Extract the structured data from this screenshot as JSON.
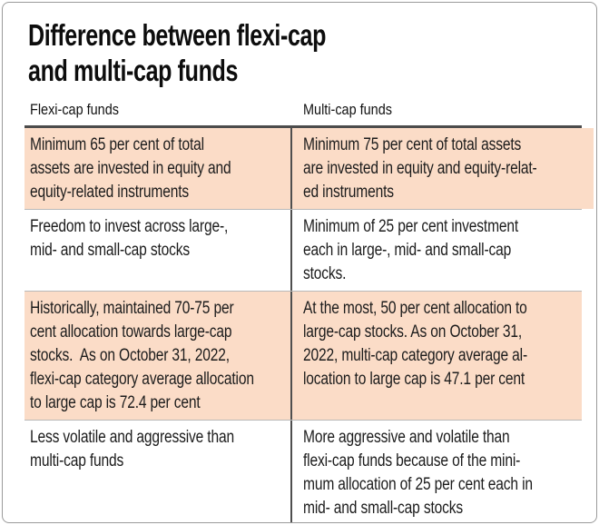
{
  "title": "Difference between flexi-cap\nand multi-cap funds",
  "colors": {
    "highlight": "#fbdcc7",
    "header_rule": "#4c4c4c",
    "row_rule": "#b8b8b8",
    "divider": "#4f4f4f",
    "frame": "#9a9a9a"
  },
  "table": {
    "columns": [
      {
        "label": "Flexi-cap funds"
      },
      {
        "label": "Multi-cap funds"
      }
    ],
    "rows": [
      {
        "highlight": true,
        "flexi": "Minimum 65 per cent of total\nassets are invested in equity and\nequity-related instruments",
        "multi": "Minimum 75 per cent of total assets\nare invested in equity and equity-relat-\ned instruments"
      },
      {
        "highlight": false,
        "flexi": "Freedom to invest across large-,\nmid- and small-cap stocks",
        "multi": "Minimum of 25 per cent investment\neach in large-, mid- and small-cap\nstocks."
      },
      {
        "highlight": true,
        "flexi": "Historically, maintained 70-75 per\ncent allocation towards large-cap\nstocks.  As on October 31, 2022,\nflexi-cap category average allocation\nto large cap is 72.4 per cent",
        "multi": "At the most, 50 per cent allocation to\nlarge-cap stocks. As on October 31,\n2022, multi-cap category average al-\nlocation to large cap is 47.1 per cent"
      },
      {
        "highlight": false,
        "flexi": "Less volatile and aggressive than\nmulti-cap funds",
        "multi": "More aggressive and volatile than\nflexi-cap funds because of the mini-\nmum allocation of 25 per cent each in\nmid- and small-cap stocks"
      }
    ]
  }
}
